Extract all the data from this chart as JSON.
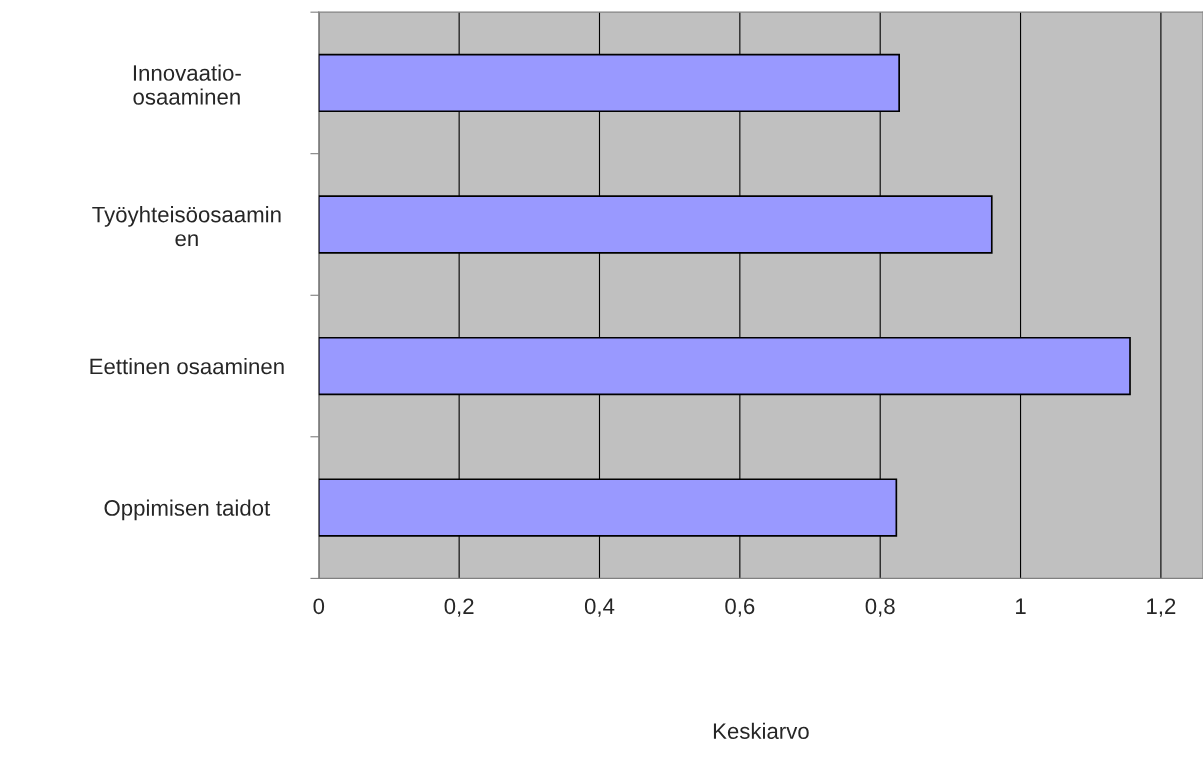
{
  "chart_data": {
    "type": "bar",
    "orientation": "horizontal",
    "xlabel": "Keskiarvo",
    "categories": [
      "Innovaatio-\nosaaminen",
      "Työyhteisöosaamin\nen",
      "Eettinen osaaminen",
      "Oppimisen taidot"
    ],
    "values": [
      0.827,
      0.959,
      1.156,
      0.823
    ],
    "color": "#9999ff",
    "xlim": [
      0,
      1.26
    ],
    "xticks": [
      0,
      {
        "value": 0.2,
        "label": "0,2"
      },
      {
        "value": 0.4,
        "label": "0,4"
      },
      {
        "value": 0.6,
        "label": "0,6"
      },
      {
        "value": 0.8,
        "label": "0,8"
      },
      1,
      {
        "value": 1.2,
        "label": "1,2"
      }
    ],
    "grid": "x",
    "legend": false
  }
}
